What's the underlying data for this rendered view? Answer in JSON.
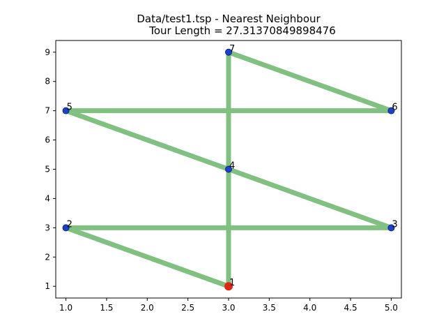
{
  "chart_data": {
    "type": "line",
    "title": "Data/test1.tsp - Nearest Neighbour",
    "subtitle": "Tour Length = 27.31370849898476",
    "xlabel": "",
    "ylabel": "",
    "xlim": [
      0.875,
      5.125
    ],
    "ylim": [
      0.6,
      9.4
    ],
    "x_ticks": [
      1.0,
      1.5,
      2.0,
      2.5,
      3.0,
      3.5,
      4.0,
      4.5,
      5.0
    ],
    "x_tick_labels": [
      "1.0",
      "1.5",
      "2.0",
      "2.5",
      "3.0",
      "3.5",
      "4.0",
      "4.5",
      "5.0"
    ],
    "y_ticks": [
      1,
      2,
      3,
      4,
      5,
      6,
      7,
      8,
      9
    ],
    "y_tick_labels": [
      "1",
      "2",
      "3",
      "4",
      "5",
      "6",
      "7",
      "8",
      "9"
    ],
    "grid": false,
    "points": [
      {
        "label": "1",
        "x": 3,
        "y": 1,
        "start": true
      },
      {
        "label": "2",
        "x": 1,
        "y": 3
      },
      {
        "label": "3",
        "x": 5,
        "y": 3
      },
      {
        "label": "4",
        "x": 3,
        "y": 5
      },
      {
        "label": "5",
        "x": 1,
        "y": 7
      },
      {
        "label": "6",
        "x": 5,
        "y": 7
      },
      {
        "label": "7",
        "x": 3,
        "y": 9
      }
    ],
    "tour": [
      "1",
      "2",
      "3",
      "4",
      "5",
      "6",
      "7",
      "1"
    ],
    "colors": {
      "tour_line": "#80c080",
      "city": "#1f3fd0",
      "city_edge": "#0a2a7a",
      "start_city": "#e0280f"
    }
  }
}
